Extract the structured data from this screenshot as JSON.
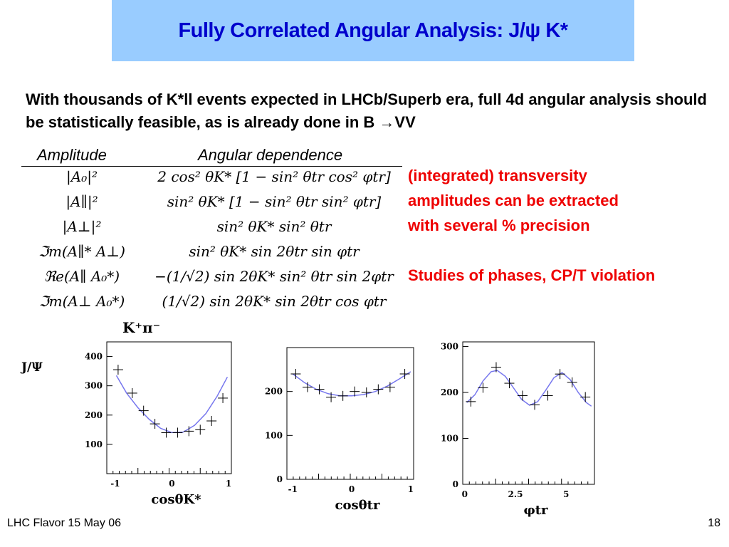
{
  "slide": {
    "title": "Fully Correlated Angular Analysis: J/ψ K*",
    "intro": "With thousands of K*ll events expected in LHCb/Superb era, full 4d angular analysis should be statistically feasible, as is already done in B →VV",
    "table_headers": {
      "amplitude": "Amplitude",
      "angular": "Angular dependence"
    },
    "table_rows": [
      {
        "amp": "|A₀|²",
        "ang": "2 cos² θK* [1 − sin² θtr cos² φtr]"
      },
      {
        "amp": "|A∥|²",
        "ang": "sin² θK* [1 − sin² θtr sin² φtr]"
      },
      {
        "amp": "|A⊥|²",
        "ang": "sin² θK* sin² θtr"
      },
      {
        "amp": "ℑm(A∥* A⊥)",
        "ang": "sin² θK* sin 2θtr sin φtr"
      },
      {
        "amp": "ℜe(A∥ A₀*)",
        "ang": "−(1/√2) sin 2θK* sin² θtr sin 2φtr"
      },
      {
        "amp": "ℑm(A⊥ A₀*)",
        "ang": "(1/√2) sin 2θK* sin 2θtr cos φtr"
      }
    ],
    "notes": [
      "(integrated) transversity",
      "amplitudes can be extracted",
      "with several % precision",
      "Studies of phases, CP/T violation"
    ],
    "footer_left": "LHC Flavor 15 May 06",
    "page_number": "18",
    "top_label": "K⁺π⁻",
    "side_label": "J/Ψ"
  },
  "chart_data": [
    {
      "type": "scatter",
      "xlabel": "cosθK*",
      "ylabel": "",
      "xlim": [
        -1.15,
        1.05
      ],
      "ylim": [
        0,
        450
      ],
      "xticks": [
        -1,
        0,
        1
      ],
      "yticks": [
        100,
        200,
        300,
        400
      ],
      "points": [
        [
          -0.95,
          355
        ],
        [
          -0.7,
          275
        ],
        [
          -0.5,
          215
        ],
        [
          -0.3,
          170
        ],
        [
          -0.1,
          140
        ],
        [
          0.1,
          140
        ],
        [
          0.3,
          145
        ],
        [
          0.5,
          150
        ],
        [
          0.7,
          180
        ],
        [
          0.9,
          258
        ]
      ],
      "fit": [
        [
          -0.98,
          335
        ],
        [
          -0.8,
          275
        ],
        [
          -0.6,
          225
        ],
        [
          -0.4,
          185
        ],
        [
          -0.2,
          155
        ],
        [
          0.0,
          140
        ],
        [
          0.2,
          142
        ],
        [
          0.4,
          165
        ],
        [
          0.6,
          205
        ],
        [
          0.8,
          265
        ],
        [
          0.98,
          330
        ]
      ]
    },
    {
      "type": "scatter",
      "xlabel": "cosθtr",
      "ylabel": "",
      "xlim": [
        -1.1,
        1.05
      ],
      "ylim": [
        0,
        300
      ],
      "xticks": [
        -1,
        0,
        1
      ],
      "yticks": [
        0,
        100,
        200
      ],
      "points": [
        [
          -0.95,
          240
        ],
        [
          -0.75,
          210
        ],
        [
          -0.55,
          205
        ],
        [
          -0.35,
          187
        ],
        [
          -0.15,
          190
        ],
        [
          0.05,
          200
        ],
        [
          0.25,
          198
        ],
        [
          0.45,
          205
        ],
        [
          0.65,
          210
        ],
        [
          0.9,
          240
        ]
      ],
      "fit": [
        [
          -1.0,
          240
        ],
        [
          -0.8,
          220
        ],
        [
          -0.6,
          205
        ],
        [
          -0.4,
          195
        ],
        [
          -0.2,
          190
        ],
        [
          0.0,
          190
        ],
        [
          0.2,
          193
        ],
        [
          0.4,
          200
        ],
        [
          0.6,
          212
        ],
        [
          0.8,
          228
        ],
        [
          1.0,
          245
        ]
      ]
    },
    {
      "type": "scatter",
      "xlabel": "φtr",
      "ylabel": "",
      "xlim": [
        -0.1,
        6.4
      ],
      "ylim": [
        0,
        310
      ],
      "xticks": [
        0,
        2.5,
        5
      ],
      "xtick_labels": [
        "0",
        "2.5",
        "5"
      ],
      "yticks": [
        0,
        100,
        200,
        300
      ],
      "points": [
        [
          0.3,
          180
        ],
        [
          0.9,
          210
        ],
        [
          1.55,
          255
        ],
        [
          2.2,
          220
        ],
        [
          2.85,
          193
        ],
        [
          3.45,
          173
        ],
        [
          4.1,
          193
        ],
        [
          4.7,
          240
        ],
        [
          5.3,
          222
        ],
        [
          5.95,
          190
        ]
      ],
      "fit": [
        [
          0.1,
          178
        ],
        [
          0.5,
          195
        ],
        [
          0.9,
          225
        ],
        [
          1.3,
          245
        ],
        [
          1.6,
          248
        ],
        [
          2.0,
          235
        ],
        [
          2.4,
          210
        ],
        [
          2.8,
          185
        ],
        [
          3.2,
          172
        ],
        [
          3.6,
          180
        ],
        [
          4.0,
          205
        ],
        [
          4.4,
          232
        ],
        [
          4.8,
          243
        ],
        [
          5.2,
          228
        ],
        [
          5.6,
          200
        ],
        [
          6.0,
          178
        ],
        [
          6.25,
          170
        ]
      ]
    }
  ]
}
